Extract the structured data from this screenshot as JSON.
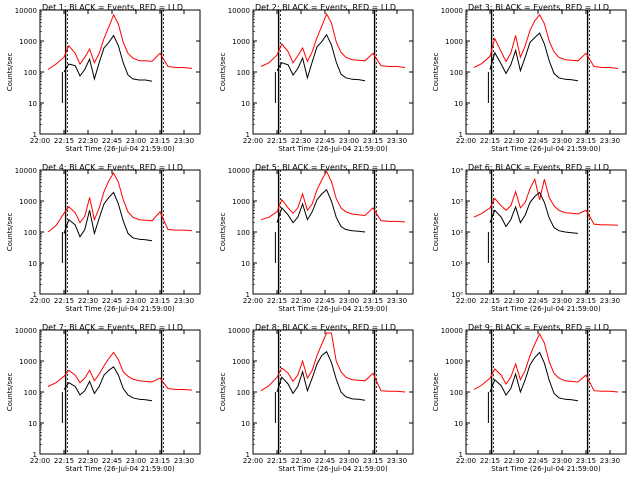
{
  "colors": {
    "events": "#000000",
    "lld": "#ff0000",
    "axes": "#000000",
    "background": "#ffffff"
  },
  "x_ticks": [
    "22:00",
    "22:15",
    "22:30",
    "22:45",
    "23:00",
    "23:15",
    "23:30"
  ],
  "xlabel": "Start Time (26-Jul-04 21:59:00)",
  "ylabel": "Counts/sec",
  "y_ticks_plain": [
    "1",
    "10",
    "100",
    "1000",
    "10000"
  ],
  "y_ticks_exp": [
    "10⁰",
    "10¹",
    "10²",
    "10³",
    "10⁴"
  ],
  "chart_data": [
    {
      "type": "line",
      "title": "Det 1: BLACK = Events, RED = LLD",
      "ylog": true,
      "ylim": [
        1,
        10000
      ],
      "xlim": [
        "22:00",
        "23:40"
      ],
      "tick_style": "plain",
      "x": [
        "22:05",
        "22:10",
        "22:15",
        "22:18",
        "22:22",
        "22:25",
        "22:28",
        "22:31",
        "22:34",
        "22:37",
        "22:40",
        "22:43",
        "22:46",
        "22:49",
        "22:52",
        "22:55",
        "22:58",
        "23:02",
        "23:06",
        "23:10",
        "23:15",
        "23:20",
        "23:25",
        "23:30",
        "23:35"
      ],
      "series": [
        {
          "values": [
            120,
            180,
            300,
            700,
            400,
            180,
            300,
            550,
            200,
            400,
            1200,
            2800,
            7000,
            3500,
            900,
            400,
            280,
            230,
            230,
            220,
            400,
            150,
            140,
            140,
            130
          ]
        },
        {
          "values": [
            null,
            null,
            100,
            180,
            160,
            75,
            120,
            260,
            60,
            200,
            600,
            900,
            1500,
            700,
            200,
            80,
            60,
            55,
            55,
            50,
            null,
            null,
            null,
            null,
            null
          ]
        }
      ]
    },
    {
      "type": "line",
      "title": "Det 2: BLACK = Events, RED = LLD",
      "ylog": true,
      "ylim": [
        1,
        10000
      ],
      "xlim": [
        "22:00",
        "23:40"
      ],
      "tick_style": "plain",
      "x": [
        "22:05",
        "22:10",
        "22:15",
        "22:18",
        "22:22",
        "22:25",
        "22:28",
        "22:31",
        "22:34",
        "22:37",
        "22:40",
        "22:43",
        "22:46",
        "22:49",
        "22:52",
        "22:55",
        "22:58",
        "23:02",
        "23:06",
        "23:10",
        "23:15",
        "23:20",
        "23:25",
        "23:30",
        "23:35"
      ],
      "series": [
        {
          "values": [
            150,
            200,
            350,
            800,
            450,
            200,
            330,
            600,
            220,
            450,
            1300,
            3000,
            7500,
            3800,
            950,
            430,
            300,
            250,
            240,
            230,
            400,
            160,
            150,
            150,
            140
          ]
        },
        {
          "values": [
            null,
            null,
            110,
            200,
            170,
            80,
            130,
            280,
            65,
            210,
            650,
            950,
            1600,
            750,
            210,
            85,
            65,
            58,
            57,
            52,
            null,
            null,
            null,
            null,
            null
          ]
        }
      ]
    },
    {
      "type": "line",
      "title": "Det 3: BLACK = Events, RED = LLD",
      "ylog": true,
      "ylim": [
        1,
        10000
      ],
      "xlim": [
        "22:00",
        "23:40"
      ],
      "tick_style": "plain",
      "x": [
        "22:05",
        "22:10",
        "22:15",
        "22:18",
        "22:22",
        "22:25",
        "22:28",
        "22:31",
        "22:34",
        "22:37",
        "22:40",
        "22:43",
        "22:46",
        "22:49",
        "22:52",
        "22:55",
        "22:58",
        "23:02",
        "23:06",
        "23:10",
        "23:15",
        "23:20",
        "23:25",
        "23:30",
        "23:35"
      ],
      "series": [
        {
          "values": [
            140,
            190,
            320,
            1200,
            450,
            220,
            400,
            1500,
            300,
            700,
            2200,
            4500,
            7000,
            3600,
            1000,
            450,
            300,
            250,
            240,
            230,
            400,
            150,
            140,
            140,
            130
          ]
        },
        {
          "values": [
            null,
            null,
            120,
            420,
            180,
            90,
            170,
            500,
            110,
            300,
            900,
            1300,
            1800,
            800,
            230,
            90,
            65,
            58,
            56,
            52,
            null,
            null,
            null,
            null,
            null
          ]
        }
      ]
    },
    {
      "type": "line",
      "title": "Det 4: BLACK = Events, RED = LLD",
      "ylog": true,
      "ylim": [
        1,
        10000
      ],
      "xlim": [
        "22:00",
        "23:40"
      ],
      "tick_style": "plain",
      "x": [
        "22:05",
        "22:10",
        "22:15",
        "22:18",
        "22:22",
        "22:25",
        "22:28",
        "22:31",
        "22:34",
        "22:37",
        "22:40",
        "22:43",
        "22:46",
        "22:49",
        "22:52",
        "22:55",
        "22:58",
        "23:02",
        "23:06",
        "23:10",
        "23:15",
        "23:20",
        "23:25",
        "23:30",
        "23:35"
      ],
      "series": [
        {
          "values": [
            100,
            160,
            400,
            650,
            420,
            200,
            320,
            1300,
            250,
            600,
            2000,
            4500,
            8000,
            4000,
            1100,
            450,
            300,
            250,
            240,
            230,
            450,
            120,
            115,
            115,
            110
          ]
        },
        {
          "values": [
            null,
            null,
            90,
            250,
            170,
            70,
            120,
            500,
            90,
            280,
            800,
            1300,
            1900,
            800,
            230,
            90,
            65,
            58,
            56,
            52,
            null,
            null,
            null,
            null,
            null
          ]
        }
      ]
    },
    {
      "type": "line",
      "title": "Det 5: BLACK = Events, RED = LLD",
      "ylog": true,
      "ylim": [
        1,
        10000
      ],
      "xlim": [
        "22:00",
        "23:40"
      ],
      "tick_style": "plain",
      "x": [
        "22:05",
        "22:10",
        "22:15",
        "22:18",
        "22:22",
        "22:25",
        "22:28",
        "22:31",
        "22:34",
        "22:37",
        "22:40",
        "22:43",
        "22:46",
        "22:49",
        "22:52",
        "22:55",
        "22:58",
        "23:02",
        "23:06",
        "23:10",
        "23:15",
        "23:20",
        "23:25",
        "23:30",
        "23:35"
      ],
      "series": [
        {
          "values": [
            250,
            300,
            450,
            1100,
            600,
            400,
            600,
            1700,
            500,
            800,
            2300,
            4800,
            9000,
            4300,
            1200,
            600,
            450,
            380,
            360,
            340,
            600,
            230,
            220,
            220,
            210
          ]
        },
        {
          "values": [
            null,
            null,
            200,
            600,
            350,
            200,
            300,
            800,
            250,
            450,
            1100,
            1700,
            2300,
            1000,
            300,
            150,
            120,
            110,
            105,
            100,
            null,
            null,
            null,
            null,
            null
          ]
        }
      ]
    },
    {
      "type": "line",
      "title": "Det 6: BLACK = Events, RED = LLD",
      "ylog": true,
      "ylim": [
        1,
        10000
      ],
      "xlim": [
        "22:00",
        "23:40"
      ],
      "tick_style": "exponent",
      "x": [
        "22:05",
        "22:10",
        "22:15",
        "22:18",
        "22:22",
        "22:25",
        "22:28",
        "22:31",
        "22:34",
        "22:37",
        "22:40",
        "22:43",
        "22:46",
        "22:49",
        "22:52",
        "22:55",
        "22:58",
        "23:02",
        "23:06",
        "23:10",
        "23:15",
        "23:20",
        "23:25",
        "23:30",
        "23:35"
      ],
      "series": [
        {
          "values": [
            300,
            400,
            600,
            1200,
            700,
            500,
            700,
            2000,
            600,
            900,
            2500,
            5000,
            1100,
            5000,
            1300,
            700,
            500,
            420,
            400,
            380,
            500,
            180,
            170,
            170,
            165
          ]
        },
        {
          "values": [
            null,
            null,
            200,
            500,
            300,
            150,
            250,
            650,
            200,
            350,
            900,
            1400,
            1900,
            900,
            280,
            140,
            110,
            100,
            95,
            90,
            null,
            null,
            null,
            null,
            null
          ]
        }
      ]
    },
    {
      "type": "line",
      "title": "Det 7: BLACK = Events, RED = LLD",
      "ylog": true,
      "ylim": [
        1,
        10000
      ],
      "xlim": [
        "22:00",
        "23:40"
      ],
      "tick_style": "plain",
      "x": [
        "22:05",
        "22:10",
        "22:15",
        "22:18",
        "22:22",
        "22:25",
        "22:28",
        "22:31",
        "22:34",
        "22:37",
        "22:40",
        "22:43",
        "22:46",
        "22:49",
        "22:52",
        "22:55",
        "22:58",
        "23:02",
        "23:06",
        "23:10",
        "23:15",
        "23:20",
        "23:25",
        "23:30",
        "23:35"
      ],
      "series": [
        {
          "values": [
            150,
            200,
            320,
            500,
            350,
            200,
            280,
            500,
            230,
            380,
            700,
            1200,
            1900,
            1100,
            450,
            320,
            260,
            230,
            220,
            210,
            280,
            130,
            120,
            120,
            115
          ]
        },
        {
          "values": [
            null,
            null,
            120,
            200,
            150,
            80,
            110,
            220,
            90,
            150,
            350,
            500,
            650,
            350,
            130,
            80,
            65,
            58,
            56,
            52,
            null,
            null,
            null,
            null,
            null
          ]
        }
      ]
    },
    {
      "type": "line",
      "title": "Det 8: BLACK = Events, RED = LLD",
      "ylog": true,
      "ylim": [
        1,
        10000
      ],
      "xlim": [
        "22:00",
        "23:40"
      ],
      "tick_style": "plain",
      "x": [
        "22:05",
        "22:10",
        "22:15",
        "22:18",
        "22:22",
        "22:25",
        "22:28",
        "22:31",
        "22:34",
        "22:37",
        "22:40",
        "22:43",
        "22:46",
        "22:49",
        "22:52",
        "22:55",
        "22:58",
        "23:02",
        "23:06",
        "23:10",
        "23:15",
        "23:20",
        "23:25",
        "23:30",
        "23:35"
      ],
      "series": [
        {
          "values": [
            110,
            160,
            300,
            600,
            400,
            220,
            350,
            1000,
            280,
            500,
            1500,
            3500,
            8000,
            8000,
            1000,
            450,
            300,
            250,
            240,
            230,
            400,
            110,
            105,
            105,
            100
          ]
        },
        {
          "values": [
            null,
            null,
            100,
            300,
            180,
            90,
            150,
            450,
            110,
            280,
            800,
            1500,
            2000,
            900,
            260,
            100,
            70,
            60,
            58,
            54,
            null,
            null,
            null,
            null,
            null
          ]
        }
      ]
    },
    {
      "type": "line",
      "title": "Det 9: BLACK = Events, RED = LLD",
      "ylog": true,
      "ylim": [
        1,
        10000
      ],
      "xlim": [
        "22:00",
        "23:40"
      ],
      "tick_style": "plain",
      "x": [
        "22:05",
        "22:10",
        "22:15",
        "22:18",
        "22:22",
        "22:25",
        "22:28",
        "22:31",
        "22:34",
        "22:37",
        "22:40",
        "22:43",
        "22:46",
        "22:49",
        "22:52",
        "22:55",
        "22:58",
        "23:02",
        "23:06",
        "23:10",
        "23:15",
        "23:20",
        "23:25",
        "23:30",
        "23:35"
      ],
      "series": [
        {
          "values": [
            120,
            170,
            280,
            550,
            350,
            180,
            300,
            800,
            250,
            500,
            1500,
            3500,
            7500,
            3800,
            950,
            400,
            280,
            230,
            220,
            210,
            350,
            110,
            105,
            105,
            100
          ]
        },
        {
          "values": [
            null,
            null,
            100,
            250,
            160,
            80,
            130,
            380,
            100,
            250,
            750,
            1300,
            1900,
            850,
            240,
            90,
            65,
            58,
            56,
            52,
            null,
            null,
            null,
            null,
            null
          ]
        }
      ]
    }
  ]
}
